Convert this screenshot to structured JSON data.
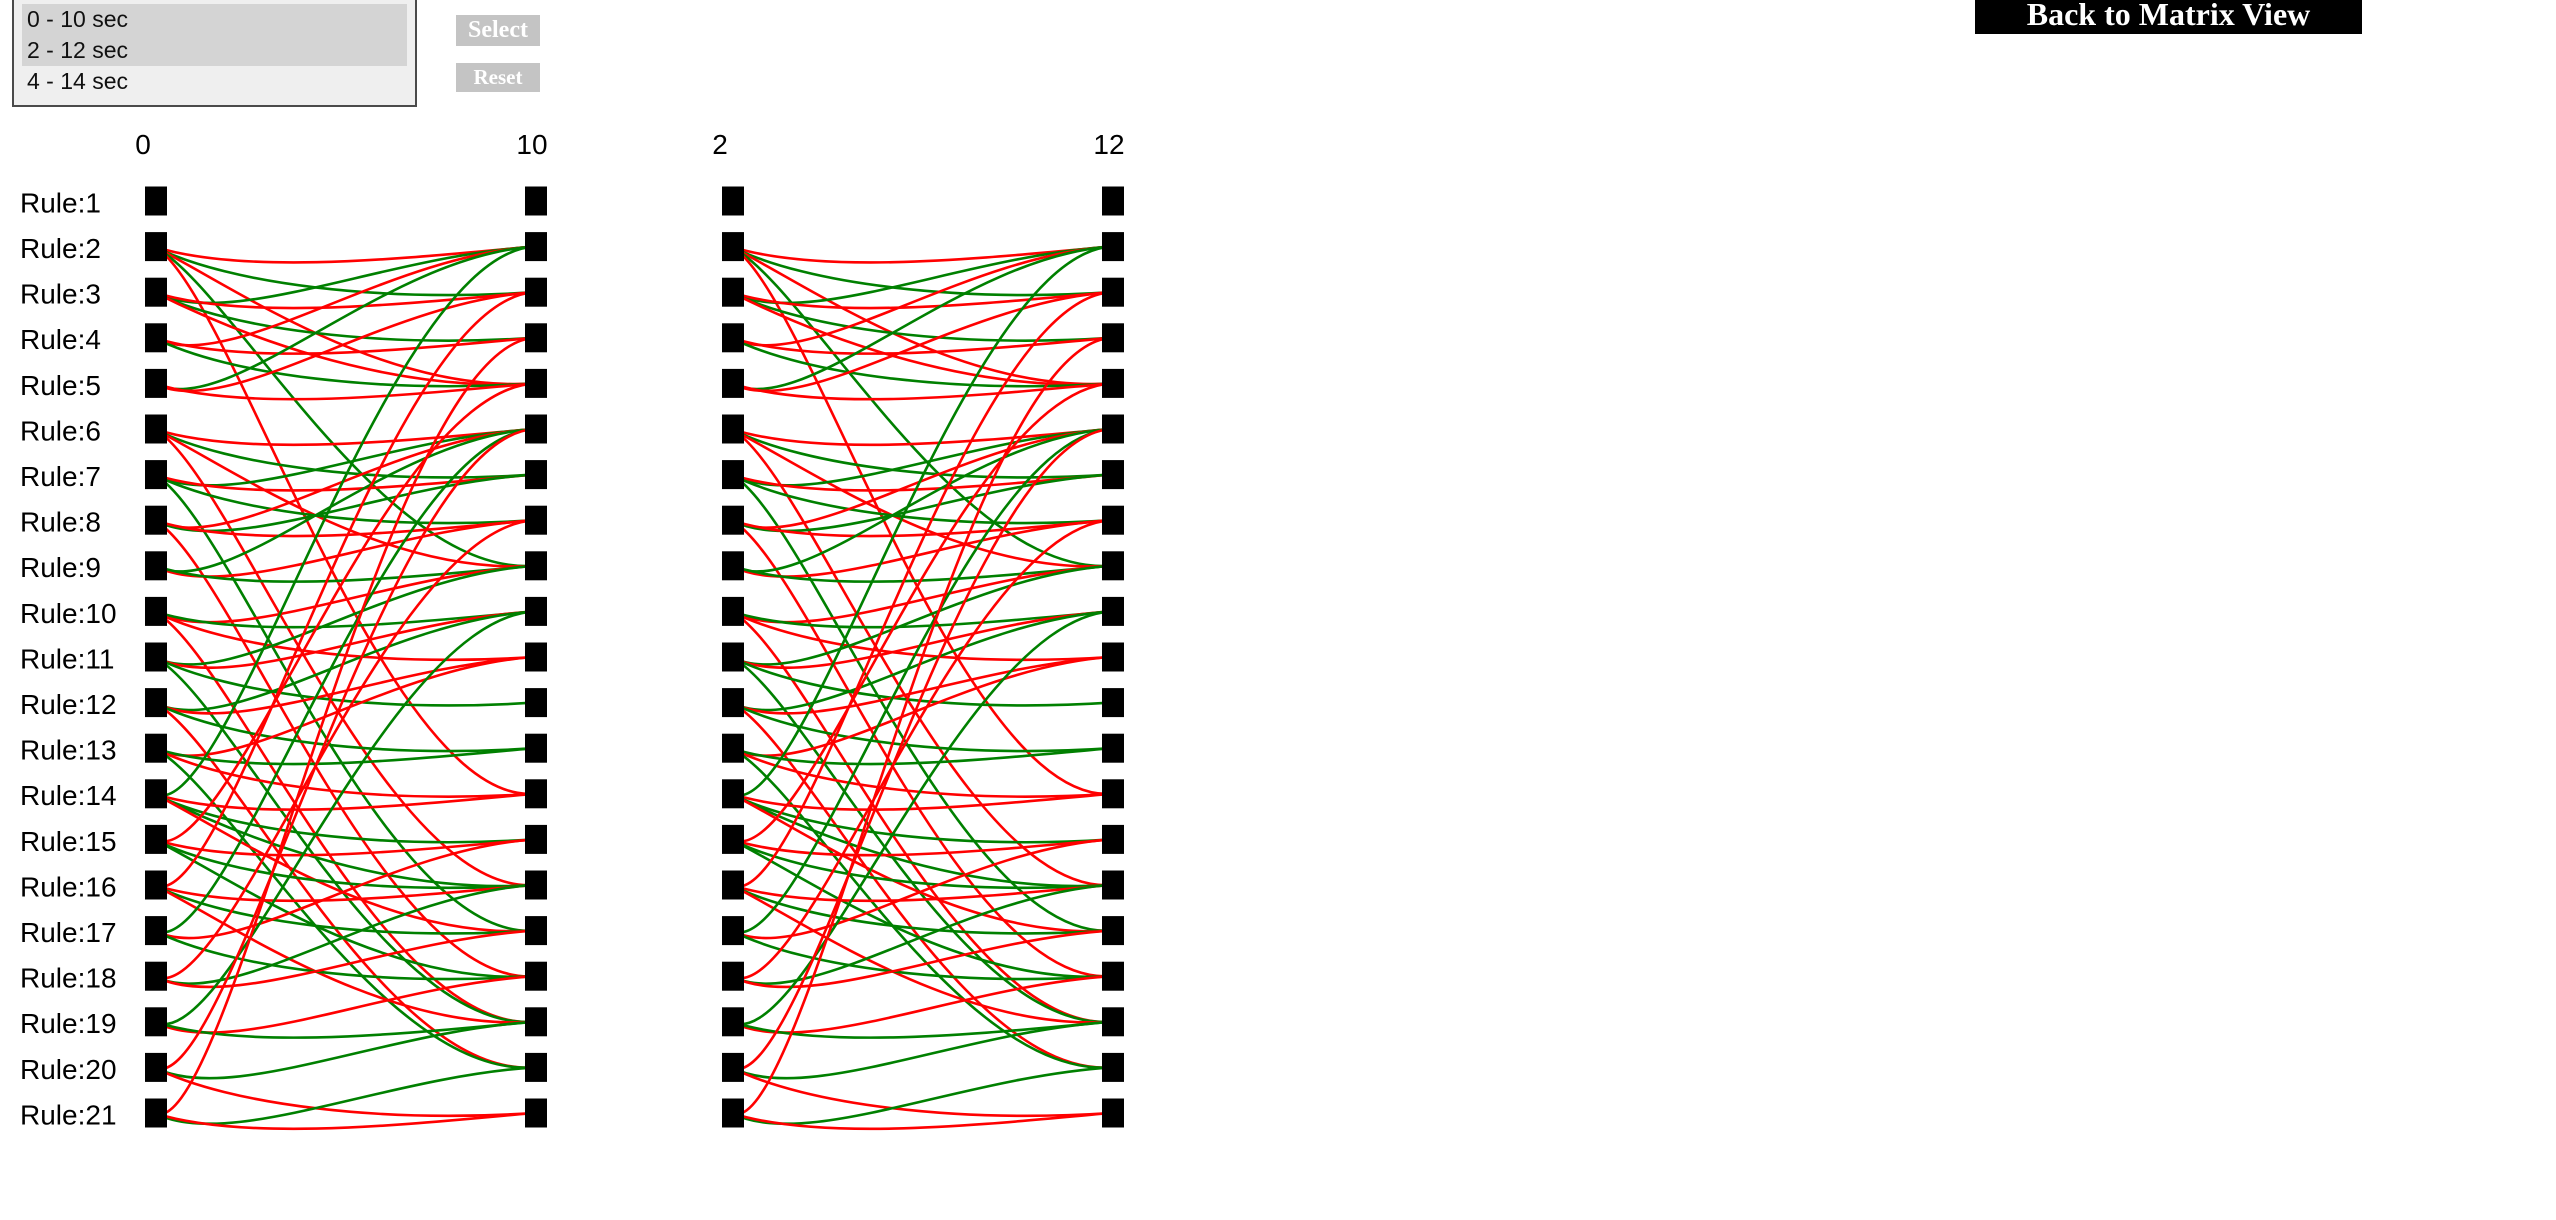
{
  "time_windows": {
    "options": [
      "0 - 10 sec",
      "2 - 12 sec",
      "4 - 14 sec"
    ],
    "selected": [
      0,
      1
    ]
  },
  "buttons": {
    "select_label": "Select",
    "reset_label": "Reset",
    "back_label": "Back to Matrix View"
  },
  "panels": [
    {
      "left_time": "0",
      "right_time": "10"
    },
    {
      "left_time": "2",
      "right_time": "12"
    }
  ],
  "rules": [
    "Rule:1",
    "Rule:2",
    "Rule:3",
    "Rule:4",
    "Rule:5",
    "Rule:6",
    "Rule:7",
    "Rule:8",
    "Rule:9",
    "Rule:10",
    "Rule:11",
    "Rule:12",
    "Rule:13",
    "Rule:14",
    "Rule:15",
    "Rule:16",
    "Rule:17",
    "Rule:18",
    "Rule:19",
    "Rule:20",
    "Rule:21"
  ],
  "colors": {
    "increase": "#ff0000",
    "decrease": "#008000",
    "node": "#000000"
  },
  "connections": [
    {
      "from": 2,
      "to": 2,
      "color": "red"
    },
    {
      "from": 2,
      "to": 3,
      "color": "green"
    },
    {
      "from": 2,
      "to": 5,
      "color": "red"
    },
    {
      "from": 2,
      "to": 9,
      "color": "green"
    },
    {
      "from": 2,
      "to": 14,
      "color": "red"
    },
    {
      "from": 3,
      "to": 2,
      "color": "green"
    },
    {
      "from": 3,
      "to": 3,
      "color": "red"
    },
    {
      "from": 3,
      "to": 4,
      "color": "green"
    },
    {
      "from": 3,
      "to": 5,
      "color": "red"
    },
    {
      "from": 4,
      "to": 2,
      "color": "red"
    },
    {
      "from": 4,
      "to": 5,
      "color": "green"
    },
    {
      "from": 4,
      "to": 4,
      "color": "red"
    },
    {
      "from": 5,
      "to": 2,
      "color": "green"
    },
    {
      "from": 5,
      "to": 3,
      "color": "red"
    },
    {
      "from": 5,
      "to": 5,
      "color": "red"
    },
    {
      "from": 6,
      "to": 6,
      "color": "red"
    },
    {
      "from": 6,
      "to": 7,
      "color": "green"
    },
    {
      "from": 6,
      "to": 9,
      "color": "red"
    },
    {
      "from": 6,
      "to": 16,
      "color": "red"
    },
    {
      "from": 7,
      "to": 6,
      "color": "green"
    },
    {
      "from": 7,
      "to": 7,
      "color": "red"
    },
    {
      "from": 7,
      "to": 8,
      "color": "green"
    },
    {
      "from": 7,
      "to": 17,
      "color": "green"
    },
    {
      "from": 8,
      "to": 6,
      "color": "red"
    },
    {
      "from": 8,
      "to": 7,
      "color": "green"
    },
    {
      "from": 8,
      "to": 8,
      "color": "red"
    },
    {
      "from": 8,
      "to": 18,
      "color": "red"
    },
    {
      "from": 9,
      "to": 6,
      "color": "green"
    },
    {
      "from": 9,
      "to": 8,
      "color": "red"
    },
    {
      "from": 9,
      "to": 9,
      "color": "green"
    },
    {
      "from": 10,
      "to": 9,
      "color": "red"
    },
    {
      "from": 10,
      "to": 10,
      "color": "green"
    },
    {
      "from": 10,
      "to": 11,
      "color": "red"
    },
    {
      "from": 10,
      "to": 19,
      "color": "red"
    },
    {
      "from": 11,
      "to": 9,
      "color": "green"
    },
    {
      "from": 11,
      "to": 10,
      "color": "red"
    },
    {
      "from": 11,
      "to": 12,
      "color": "green"
    },
    {
      "from": 11,
      "to": 19,
      "color": "green"
    },
    {
      "from": 12,
      "to": 10,
      "color": "green"
    },
    {
      "from": 12,
      "to": 11,
      "color": "red"
    },
    {
      "from": 12,
      "to": 13,
      "color": "green"
    },
    {
      "from": 12,
      "to": 20,
      "color": "red"
    },
    {
      "from": 13,
      "to": 11,
      "color": "red"
    },
    {
      "from": 13,
      "to": 13,
      "color": "green"
    },
    {
      "from": 13,
      "to": 14,
      "color": "red"
    },
    {
      "from": 13,
      "to": 20,
      "color": "green"
    },
    {
      "from": 14,
      "to": 2,
      "color": "green"
    },
    {
      "from": 14,
      "to": 14,
      "color": "red"
    },
    {
      "from": 14,
      "to": 15,
      "color": "green"
    },
    {
      "from": 14,
      "to": 16,
      "color": "green"
    },
    {
      "from": 14,
      "to": 17,
      "color": "red"
    },
    {
      "from": 15,
      "to": 5,
      "color": "red"
    },
    {
      "from": 15,
      "to": 15,
      "color": "red"
    },
    {
      "from": 15,
      "to": 16,
      "color": "green"
    },
    {
      "from": 15,
      "to": 18,
      "color": "green"
    },
    {
      "from": 16,
      "to": 3,
      "color": "red"
    },
    {
      "from": 16,
      "to": 16,
      "color": "red"
    },
    {
      "from": 16,
      "to": 17,
      "color": "green"
    },
    {
      "from": 16,
      "to": 19,
      "color": "red"
    },
    {
      "from": 17,
      "to": 6,
      "color": "green"
    },
    {
      "from": 17,
      "to": 15,
      "color": "red"
    },
    {
      "from": 17,
      "to": 18,
      "color": "green"
    },
    {
      "from": 18,
      "to": 8,
      "color": "red"
    },
    {
      "from": 18,
      "to": 16,
      "color": "green"
    },
    {
      "from": 18,
      "to": 17,
      "color": "red"
    },
    {
      "from": 19,
      "to": 10,
      "color": "green"
    },
    {
      "from": 19,
      "to": 18,
      "color": "red"
    },
    {
      "from": 19,
      "to": 19,
      "color": "green"
    },
    {
      "from": 20,
      "to": 6,
      "color": "red"
    },
    {
      "from": 20,
      "to": 19,
      "color": "green"
    },
    {
      "from": 20,
      "to": 21,
      "color": "red"
    },
    {
      "from": 21,
      "to": 4,
      "color": "red"
    },
    {
      "from": 21,
      "to": 20,
      "color": "green"
    },
    {
      "from": 21,
      "to": 21,
      "color": "red"
    }
  ]
}
